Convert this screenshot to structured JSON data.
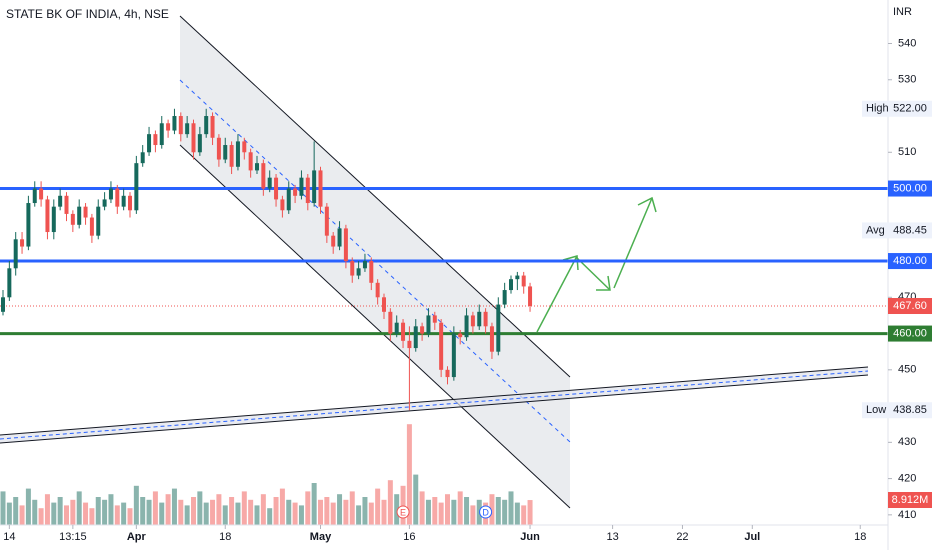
{
  "chart_data": {
    "type": "candlestick",
    "title": "STATE BK OF INDIA, 4h, NSE",
    "currency": "INR",
    "up_color": "#16695c",
    "down_color": "#ef5350",
    "xlim": [
      0,
      140
    ],
    "ylim": [
      407.2,
      552
    ],
    "yticks": [
      410,
      420,
      430,
      450,
      470,
      510,
      530,
      540
    ],
    "xticks": [
      {
        "value": 1,
        "label": "14"
      },
      {
        "value": 11,
        "label": "13:15"
      },
      {
        "value": 21,
        "label": "Apr"
      },
      {
        "value": 35,
        "label": "18"
      },
      {
        "value": 50,
        "label": "May"
      },
      {
        "value": 64,
        "label": "16"
      },
      {
        "value": 83,
        "label": "Jun"
      },
      {
        "value": 96,
        "label": "13"
      },
      {
        "value": 107,
        "label": "22"
      },
      {
        "value": 118,
        "label": "Jul"
      },
      {
        "value": 135,
        "label": "18"
      }
    ],
    "candles": [
      [
        466,
        472,
        465,
        470
      ],
      [
        470,
        480,
        469,
        478
      ],
      [
        478,
        488,
        476,
        486
      ],
      [
        486,
        488,
        482,
        484
      ],
      [
        484,
        498,
        483,
        496
      ],
      [
        496,
        502,
        495,
        500
      ],
      [
        500,
        502,
        495,
        497
      ],
      [
        497,
        498,
        486,
        488
      ],
      [
        488,
        497,
        486,
        495
      ],
      [
        495,
        500,
        494,
        498
      ],
      [
        498,
        499,
        491,
        493
      ],
      [
        493,
        494,
        488,
        490
      ],
      [
        490,
        497,
        489,
        495
      ],
      [
        495,
        496,
        490,
        492
      ],
      [
        492,
        493,
        485,
        487
      ],
      [
        487,
        497,
        486,
        495
      ],
      [
        495,
        499,
        494,
        497
      ],
      [
        497,
        502,
        496,
        500
      ],
      [
        500,
        501,
        493,
        495
      ],
      [
        495,
        500,
        494,
        498
      ],
      [
        498,
        499,
        492,
        494
      ],
      [
        494,
        509,
        493,
        507
      ],
      [
        507,
        512,
        506,
        510
      ],
      [
        510,
        517,
        509,
        515
      ],
      [
        515,
        516,
        510,
        512
      ],
      [
        512,
        520,
        511,
        518
      ],
      [
        518,
        519,
        514,
        516
      ],
      [
        516,
        522,
        515,
        520
      ],
      [
        520,
        521,
        513,
        515
      ],
      [
        515,
        520,
        514,
        518
      ],
      [
        518,
        519,
        508,
        510
      ],
      [
        510,
        517,
        509,
        515
      ],
      [
        515,
        522,
        514,
        520
      ],
      [
        520,
        521,
        512,
        514
      ],
      [
        514,
        515,
        506,
        508
      ],
      [
        508,
        514,
        507,
        512
      ],
      [
        512,
        513,
        504,
        506
      ],
      [
        506,
        515,
        505,
        513
      ],
      [
        513,
        514,
        508,
        510
      ],
      [
        510,
        511,
        503,
        505
      ],
      [
        505,
        509,
        504,
        507
      ],
      [
        507,
        508,
        498,
        500
      ],
      [
        500,
        505,
        499,
        503
      ],
      [
        503,
        504,
        495,
        497
      ],
      [
        497,
        498,
        492,
        494
      ],
      [
        494,
        502,
        493,
        500
      ],
      [
        500,
        501,
        496,
        498
      ],
      [
        498,
        505,
        497,
        503
      ],
      [
        503,
        504,
        494,
        496
      ],
      [
        496,
        513,
        495,
        505
      ],
      [
        505,
        506,
        493,
        495
      ],
      [
        495,
        496,
        485,
        487
      ],
      [
        487,
        488,
        482,
        484
      ],
      [
        484,
        491,
        483,
        489
      ],
      [
        489,
        490,
        478,
        480
      ],
      [
        480,
        481,
        474,
        476
      ],
      [
        476,
        480,
        475,
        478
      ],
      [
        478,
        482,
        477,
        480
      ],
      [
        480,
        481,
        472,
        474
      ],
      [
        474,
        475,
        468,
        470
      ],
      [
        470,
        471,
        464,
        466
      ],
      [
        466,
        467,
        458,
        460
      ],
      [
        460,
        465,
        459,
        463
      ],
      [
        463,
        464,
        456,
        458
      ],
      [
        458,
        462,
        438.85,
        456
      ],
      [
        456,
        464,
        455,
        462
      ],
      [
        462,
        463,
        458,
        460
      ],
      [
        460,
        467,
        459,
        465
      ],
      [
        465,
        466,
        461,
        463
      ],
      [
        463,
        464,
        448,
        450
      ],
      [
        450,
        451,
        446,
        448
      ],
      [
        448,
        462,
        447,
        460
      ],
      [
        460,
        461,
        457,
        459
      ],
      [
        459,
        467,
        458,
        465
      ],
      [
        465,
        466,
        460,
        462
      ],
      [
        462,
        468,
        461,
        466
      ],
      [
        466,
        467,
        460,
        462
      ],
      [
        462,
        463,
        453,
        455
      ],
      [
        455,
        470,
        454,
        468
      ],
      [
        468,
        474,
        467,
        472
      ],
      [
        472,
        476,
        471,
        475
      ],
      [
        475,
        477,
        472,
        476
      ],
      [
        476,
        477,
        471,
        473
      ],
      [
        473,
        474,
        466,
        467.6
      ]
    ],
    "volume": {
      "values": [
        12,
        8,
        10,
        7,
        13,
        9,
        6,
        11,
        8,
        10,
        7,
        9,
        12,
        8,
        6,
        10,
        9,
        11,
        7,
        8,
        6,
        14,
        10,
        9,
        12,
        8,
        11,
        13,
        9,
        7,
        10,
        12,
        8,
        9,
        11,
        7,
        10,
        8,
        12,
        9,
        7,
        11,
        6,
        10,
        13,
        9,
        8,
        7,
        12,
        15,
        9,
        10,
        8,
        11,
        9,
        12,
        7,
        10,
        8,
        13,
        9,
        16,
        11,
        14,
        36,
        18,
        12,
        9,
        10,
        8,
        11,
        9,
        12,
        10,
        7,
        9,
        8,
        11,
        10,
        9,
        12,
        8,
        7,
        8.912
      ],
      "last_label": "8.912M"
    },
    "levels": [
      {
        "value": 500,
        "label": "500.00",
        "color": "#2962ff"
      },
      {
        "value": 480,
        "label": "480.00",
        "color": "#2962ff"
      },
      {
        "value": 460,
        "label": "460.00",
        "color": "#2e7d32"
      }
    ],
    "last_price": {
      "value": 467.6,
      "label": "467.60"
    },
    "stats": [
      {
        "name": "High",
        "value": 522,
        "label": "522.00"
      },
      {
        "name": "Avg",
        "value": 488.45,
        "label": "488.45"
      },
      {
        "name": "Low",
        "value": 438.85,
        "label": "438.85"
      }
    ],
    "events": [
      "E",
      "D"
    ]
  }
}
